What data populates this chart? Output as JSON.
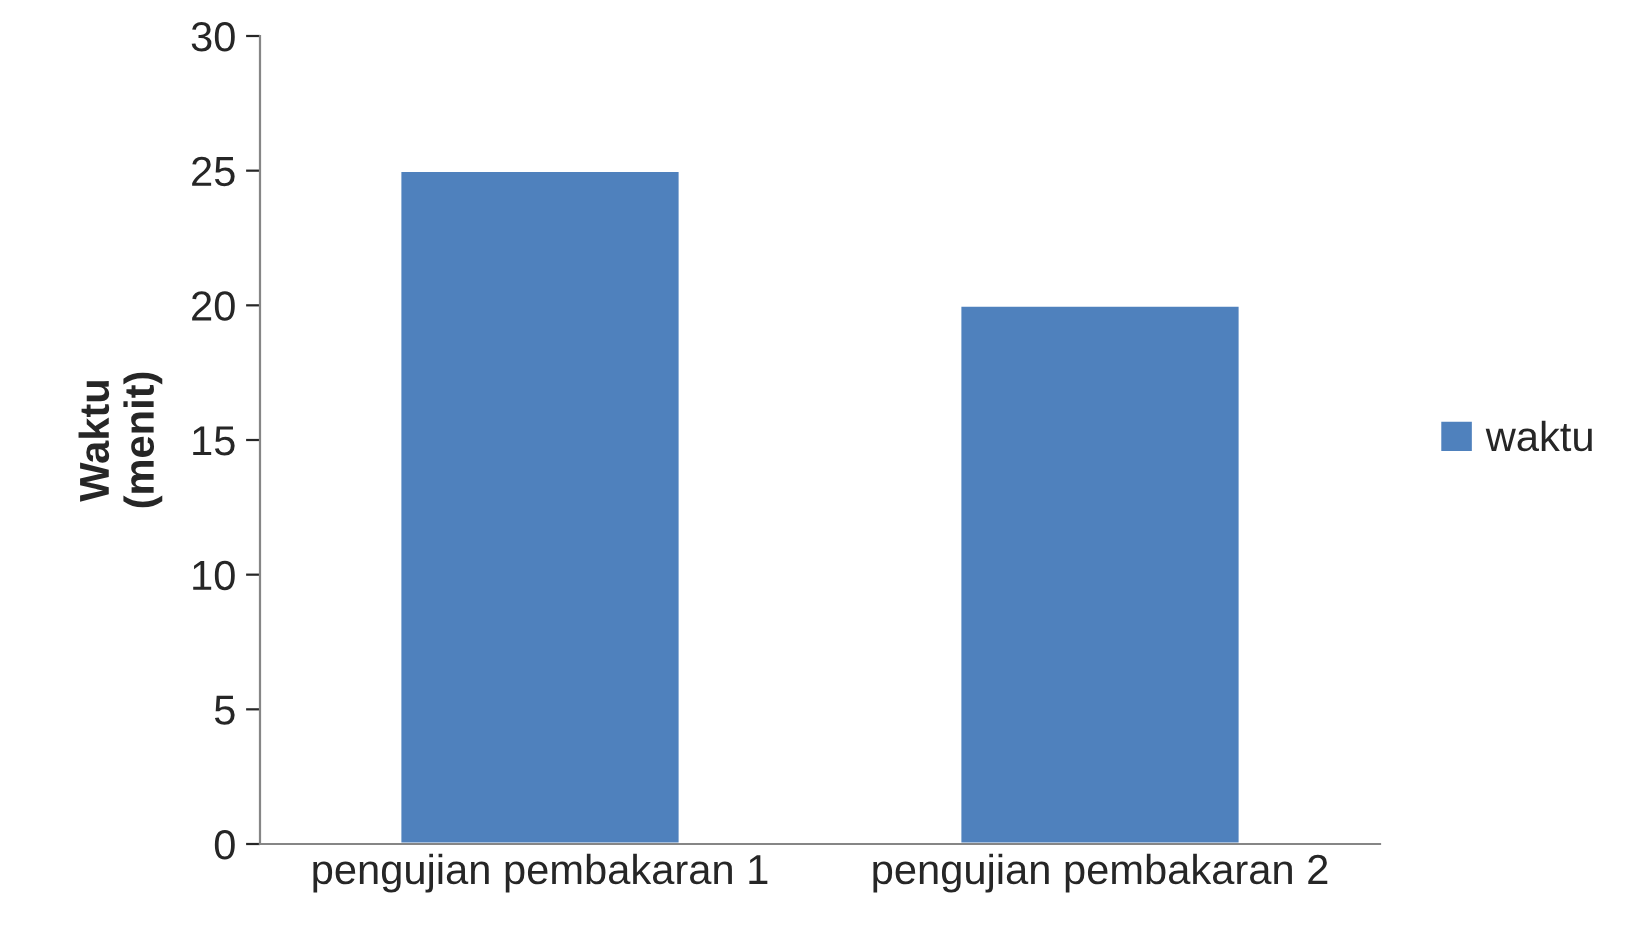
{
  "chart_data": {
    "type": "bar",
    "ylabel": "Waktu\n(menit)",
    "categories": [
      "pengujian pembakaran 1",
      "pengujian pembakaran 2"
    ],
    "series": [
      {
        "name": "waktu",
        "color": "#4f81bd",
        "values": [
          25,
          20
        ]
      }
    ],
    "ylim": [
      0,
      30
    ],
    "yticks": [
      0,
      5,
      10,
      15,
      20,
      25,
      30
    ],
    "grid": false,
    "legend": "right"
  }
}
